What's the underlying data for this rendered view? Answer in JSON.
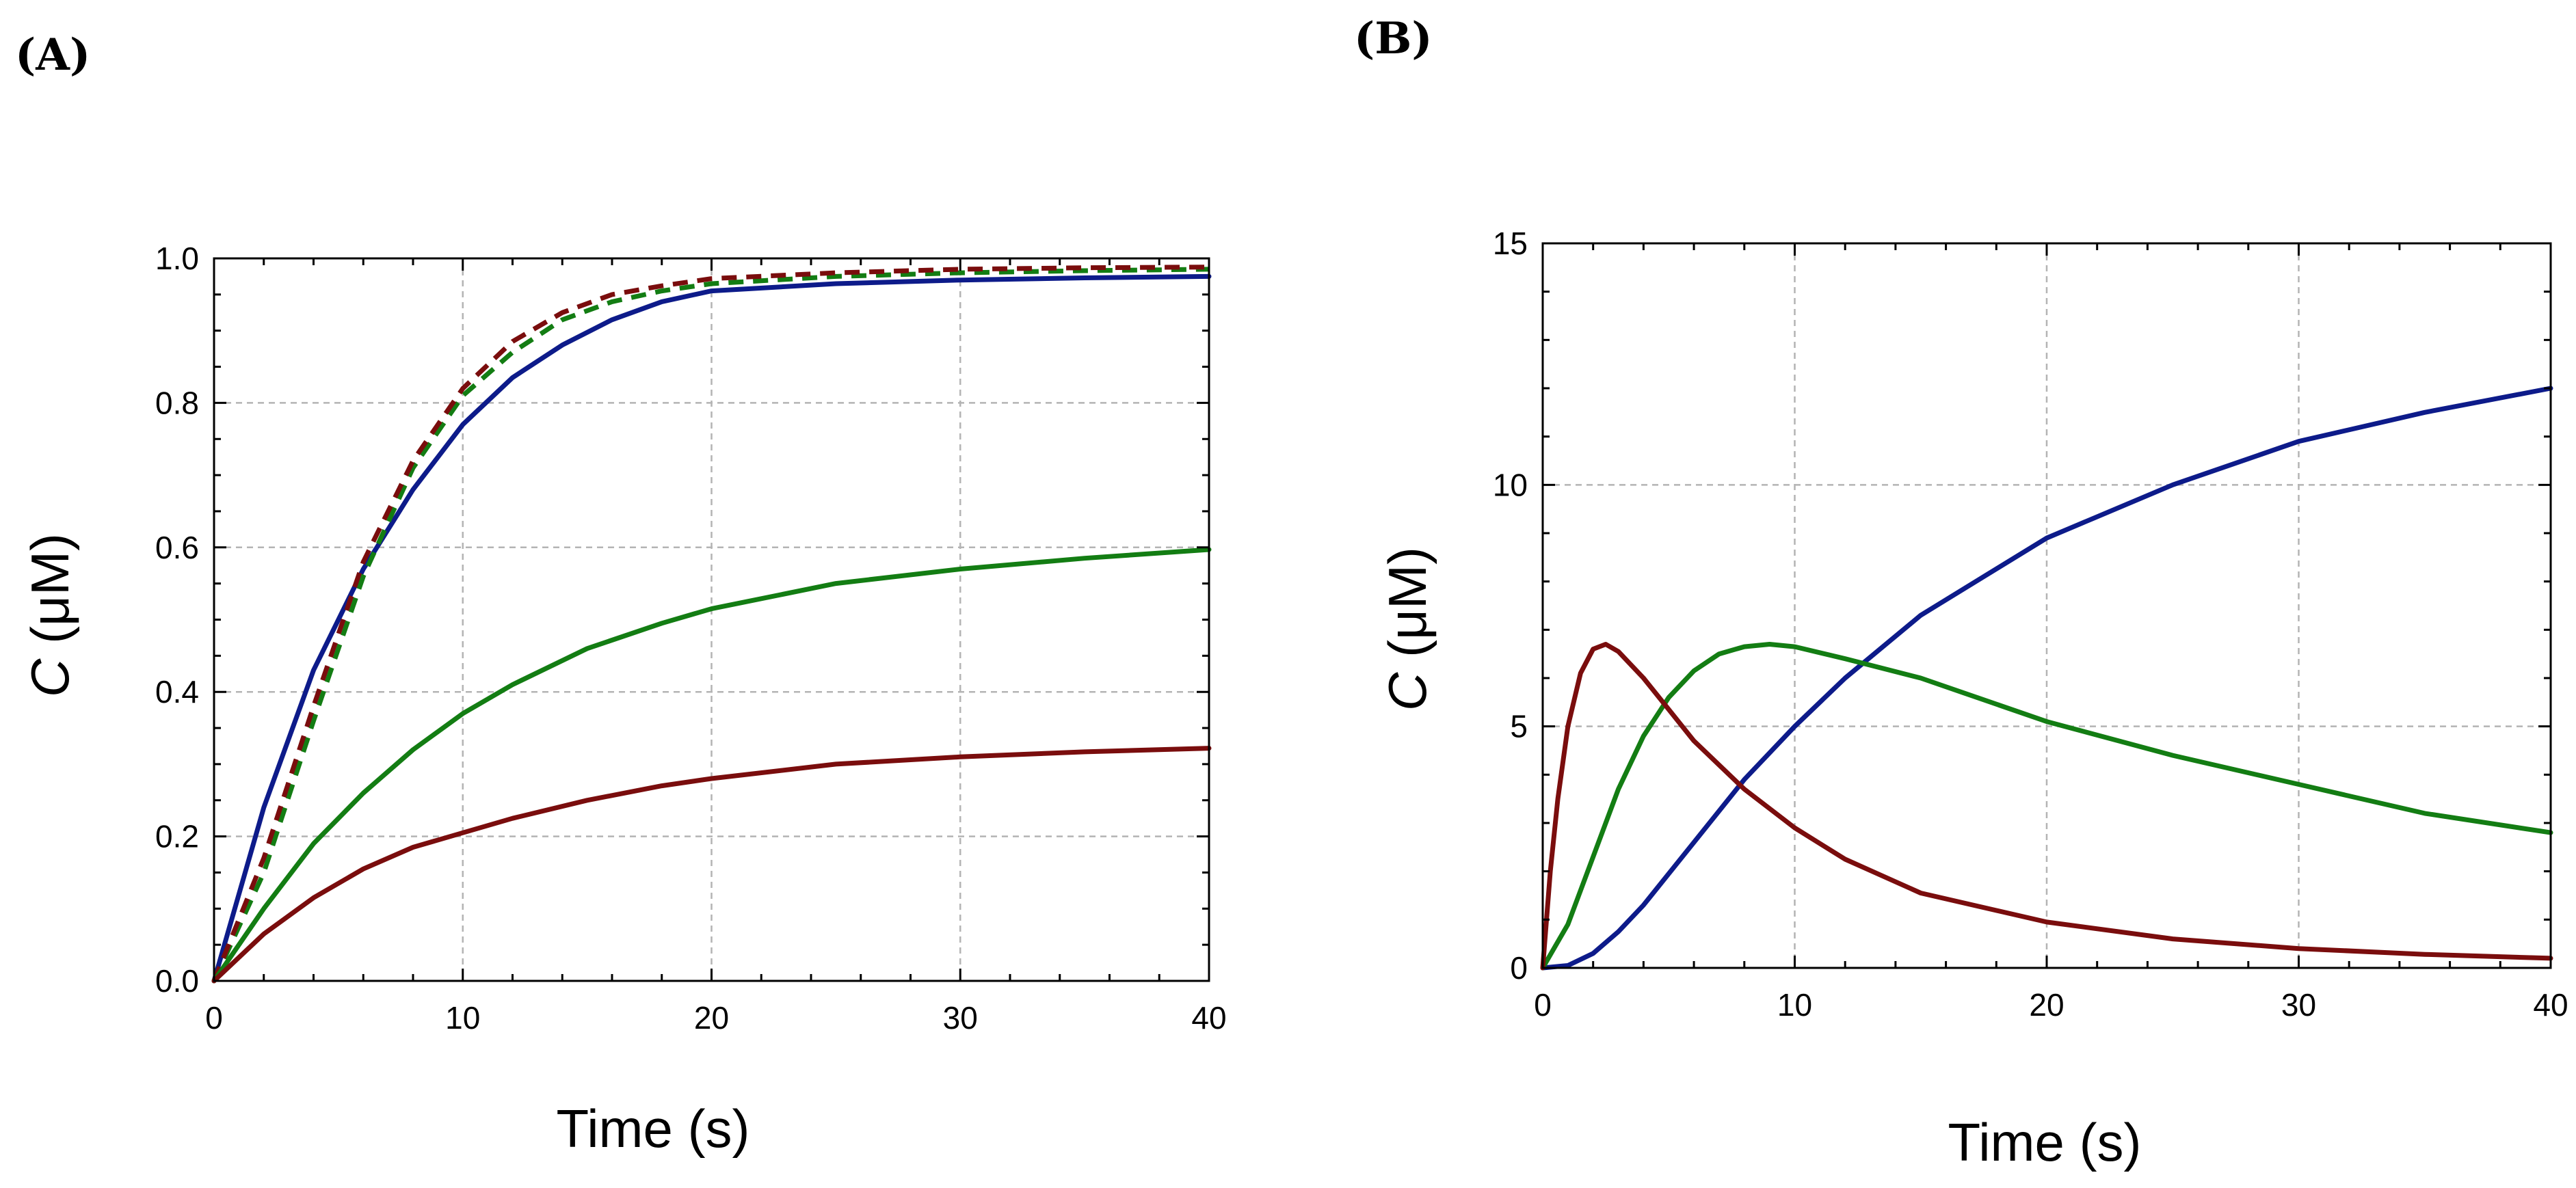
{
  "panels": [
    {
      "label": "(A)",
      "chart_data": {
        "type": "line",
        "title": "",
        "xlabel": "Time (s)",
        "ylabel_italic": "C",
        "ylabel_rest": " (μM)",
        "xlim": [
          0,
          40
        ],
        "ylim": [
          0,
          1.0
        ],
        "xticks": [
          0,
          10,
          20,
          30,
          40
        ],
        "yticks": [
          0.0,
          0.2,
          0.4,
          0.6,
          0.8,
          1.0
        ],
        "ytick_labels": [
          "0.0",
          "0.2",
          "0.4",
          "0.6",
          "0.8",
          "1.0"
        ],
        "xtick_labels": [
          "0",
          "10",
          "20",
          "30",
          "40"
        ],
        "grid": true,
        "series": [
          {
            "name": "blue solid",
            "color": "#0d1b8a",
            "dash": false,
            "x": [
              0,
              2,
              4,
              6,
              8,
              10,
              12,
              14,
              16,
              18,
              20,
              25,
              30,
              35,
              40
            ],
            "y": [
              0,
              0.24,
              0.43,
              0.57,
              0.68,
              0.77,
              0.835,
              0.88,
              0.915,
              0.94,
              0.955,
              0.965,
              0.97,
              0.973,
              0.975
            ]
          },
          {
            "name": "green dashed",
            "color": "#137d13",
            "dash": true,
            "x": [
              0,
              2,
              4,
              6,
              8,
              10,
              12,
              14,
              16,
              18,
              20,
              25,
              30,
              35,
              40
            ],
            "y": [
              0,
              0.15,
              0.36,
              0.56,
              0.71,
              0.81,
              0.87,
              0.915,
              0.94,
              0.955,
              0.965,
              0.975,
              0.98,
              0.983,
              0.985
            ]
          },
          {
            "name": "red dashed",
            "color": "#7a0d0d",
            "dash": true,
            "x": [
              0,
              2,
              4,
              6,
              8,
              10,
              12,
              14,
              16,
              18,
              20,
              25,
              30,
              35,
              40
            ],
            "y": [
              0,
              0.17,
              0.38,
              0.58,
              0.72,
              0.82,
              0.885,
              0.925,
              0.95,
              0.962,
              0.972,
              0.98,
              0.985,
              0.987,
              0.988
            ]
          },
          {
            "name": "green solid",
            "color": "#137d13",
            "dash": false,
            "x": [
              0,
              2,
              4,
              6,
              8,
              10,
              12,
              15,
              18,
              20,
              25,
              30,
              35,
              40
            ],
            "y": [
              0,
              0.1,
              0.19,
              0.26,
              0.32,
              0.37,
              0.41,
              0.46,
              0.495,
              0.515,
              0.55,
              0.57,
              0.585,
              0.597
            ]
          },
          {
            "name": "red solid",
            "color": "#7a0d0d",
            "dash": false,
            "x": [
              0,
              2,
              4,
              6,
              8,
              10,
              12,
              15,
              18,
              20,
              25,
              30,
              35,
              40
            ],
            "y": [
              0,
              0.065,
              0.115,
              0.155,
              0.185,
              0.205,
              0.225,
              0.25,
              0.27,
              0.28,
              0.3,
              0.31,
              0.317,
              0.322
            ]
          }
        ]
      }
    },
    {
      "label": "(B)",
      "chart_data": {
        "type": "line",
        "title": "",
        "xlabel": "Time (s)",
        "ylabel_italic": "C",
        "ylabel_rest": " (μM)",
        "xlim": [
          0,
          40
        ],
        "ylim": [
          0,
          15
        ],
        "xticks": [
          0,
          10,
          20,
          30,
          40
        ],
        "yticks": [
          0,
          5,
          10,
          15
        ],
        "ytick_labels": [
          "0",
          "5",
          "10",
          "15"
        ],
        "xtick_labels": [
          "0",
          "10",
          "20",
          "30",
          "40"
        ],
        "grid": true,
        "series": [
          {
            "name": "blue",
            "color": "#0d1b8a",
            "dash": false,
            "x": [
              0,
              1,
              2,
              3,
              4,
              6,
              8,
              10,
              12,
              15,
              20,
              25,
              30,
              35,
              40
            ],
            "y": [
              0,
              0.05,
              0.3,
              0.75,
              1.3,
              2.6,
              3.9,
              5.0,
              6.0,
              7.3,
              8.9,
              10.0,
              10.9,
              11.5,
              12.0
            ]
          },
          {
            "name": "green",
            "color": "#137d13",
            "dash": false,
            "x": [
              0,
              1,
              2,
              3,
              4,
              5,
              6,
              7,
              8,
              9,
              10,
              12,
              15,
              20,
              25,
              30,
              35,
              40
            ],
            "y": [
              0,
              0.9,
              2.3,
              3.7,
              4.8,
              5.6,
              6.15,
              6.5,
              6.65,
              6.7,
              6.65,
              6.4,
              6.0,
              5.1,
              4.4,
              3.8,
              3.2,
              2.8
            ]
          },
          {
            "name": "red",
            "color": "#7a0d0d",
            "dash": false,
            "x": [
              0,
              0.3,
              0.6,
              1,
              1.5,
              2,
              2.5,
              3,
              4,
              5,
              6,
              8,
              10,
              12,
              15,
              20,
              25,
              30,
              35,
              40
            ],
            "y": [
              0,
              2.0,
              3.5,
              5.0,
              6.1,
              6.6,
              6.7,
              6.55,
              6.0,
              5.35,
              4.7,
              3.7,
              2.9,
              2.25,
              1.55,
              0.95,
              0.6,
              0.4,
              0.28,
              0.2
            ]
          }
        ]
      }
    }
  ]
}
